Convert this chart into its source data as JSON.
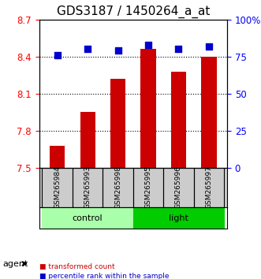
{
  "title": "GDS3187 / 1450264_a_at",
  "samples": [
    "GSM265984",
    "GSM265993",
    "GSM265998",
    "GSM265995",
    "GSM265996",
    "GSM265997"
  ],
  "bar_values": [
    7.68,
    7.95,
    8.22,
    8.46,
    8.28,
    8.4
  ],
  "percentile_values": [
    76,
    80,
    79,
    83,
    80,
    82
  ],
  "bar_color": "#cc0000",
  "dot_color": "#0000cc",
  "ylim_left": [
    7.5,
    8.7
  ],
  "ylim_right": [
    0,
    100
  ],
  "yticks_left": [
    7.5,
    7.8,
    8.1,
    8.4,
    8.7
  ],
  "ytick_labels_left": [
    "7.5",
    "7.8",
    "8.1",
    "8.4",
    "8.7"
  ],
  "yticks_right": [
    0,
    25,
    50,
    75,
    100
  ],
  "ytick_labels_right": [
    "0",
    "25",
    "50",
    "75",
    "100%"
  ],
  "groups": [
    {
      "label": "control",
      "samples": [
        "GSM265984",
        "GSM265993",
        "GSM265998"
      ],
      "color": "#aaffaa"
    },
    {
      "label": "light",
      "samples": [
        "GSM265995",
        "GSM265996",
        "GSM265997"
      ],
      "color": "#00cc00"
    }
  ],
  "agent_label": "agent",
  "legend_items": [
    {
      "color": "#cc0000",
      "label": "transformed count"
    },
    {
      "color": "#0000cc",
      "label": "percentile rank within the sample"
    }
  ],
  "grid_color": "#000000",
  "background_color": "#ffffff",
  "plot_bg": "#ffffff",
  "bar_width": 0.5,
  "title_fontsize": 11,
  "tick_fontsize": 8.5,
  "label_fontsize": 8
}
